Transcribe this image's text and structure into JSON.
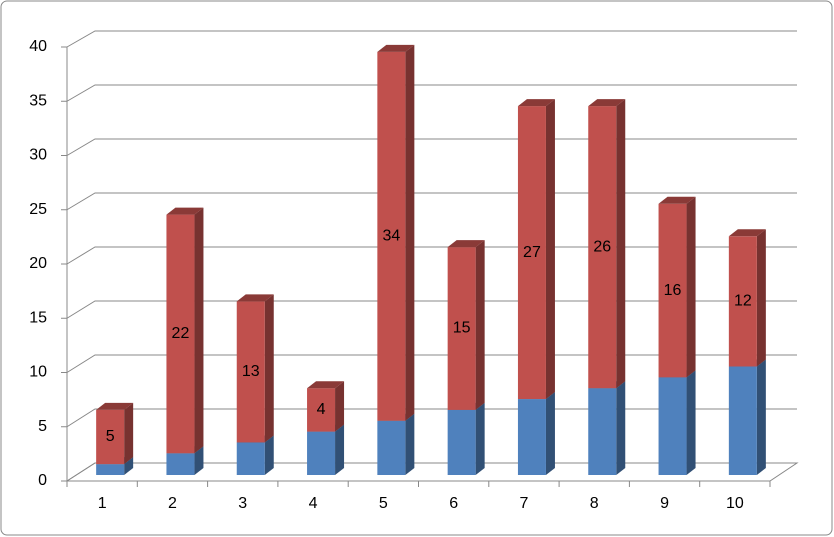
{
  "chart_data": {
    "type": "bar",
    "stacked": true,
    "three_d": true,
    "categories": [
      "1",
      "2",
      "3",
      "4",
      "5",
      "6",
      "7",
      "8",
      "9",
      "10"
    ],
    "series": [
      {
        "color": "#4f81bd",
        "values": [
          1,
          2,
          3,
          4,
          5,
          6,
          7,
          8,
          9,
          10
        ],
        "show_labels": false
      },
      {
        "color": "#c0504d",
        "values": [
          5,
          22,
          13,
          4,
          34,
          15,
          27,
          26,
          16,
          12
        ],
        "show_labels": true
      }
    ],
    "ylim": [
      0,
      40
    ],
    "yticks": [
      0,
      5,
      10,
      15,
      20,
      25,
      30,
      35,
      40
    ],
    "grid": true
  }
}
